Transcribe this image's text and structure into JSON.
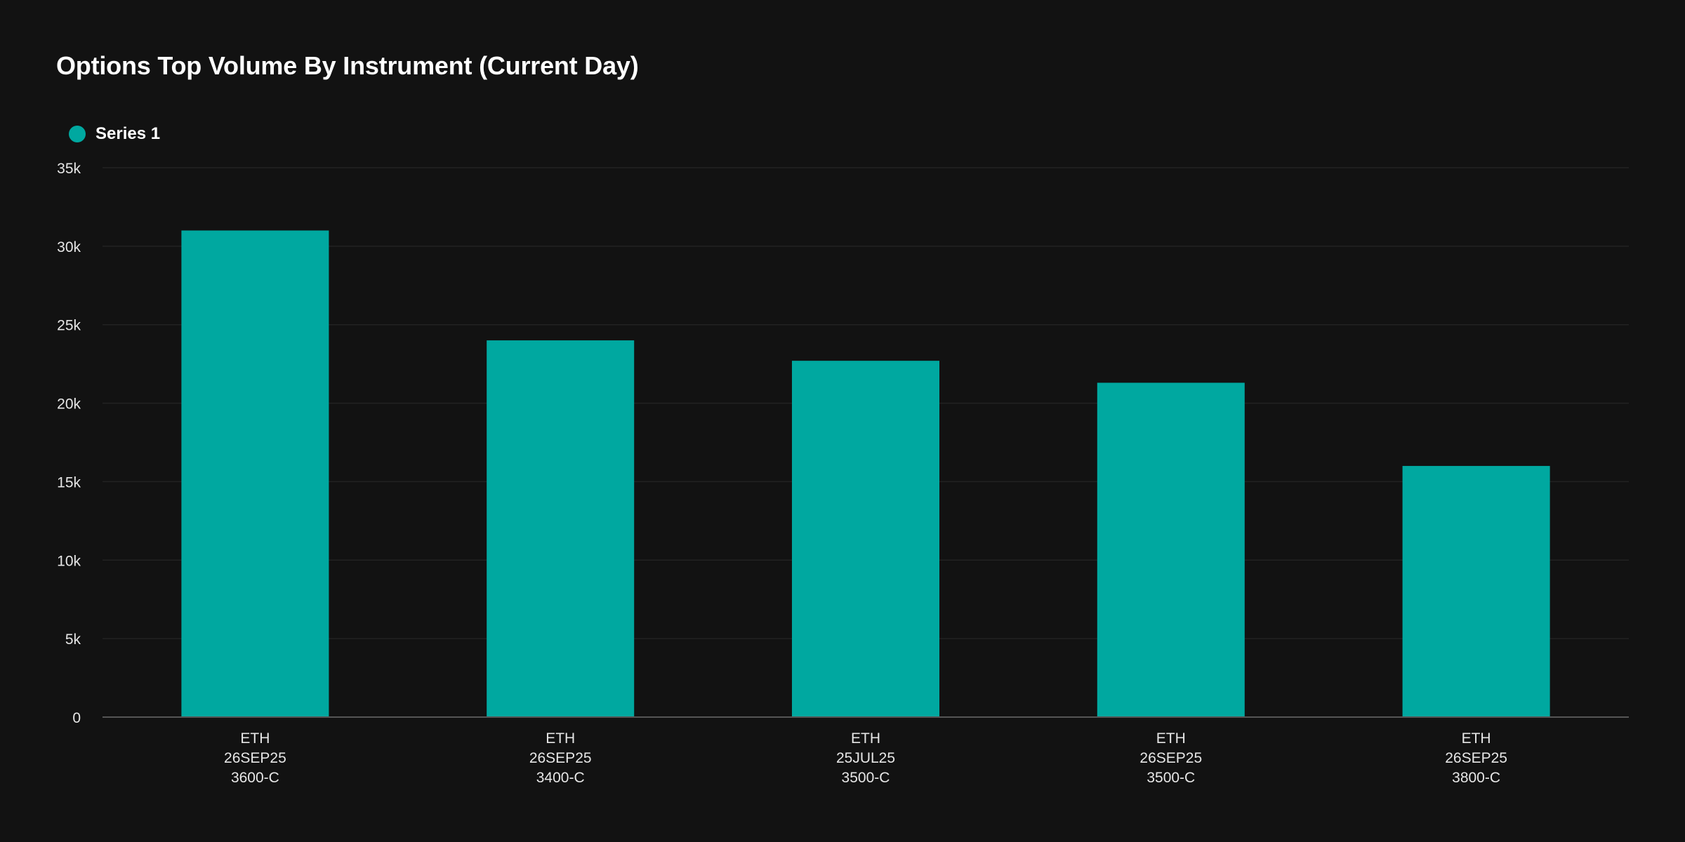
{
  "colors": {
    "background": "#121212",
    "bar": "#00a8a0",
    "gridline": "#222222",
    "axis": "#555555",
    "text": "#ffffff",
    "tick_text": "#e6e6e6"
  },
  "chart_data": {
    "type": "bar",
    "title": "Options Top Volume By Instrument (Current Day)",
    "xlabel": "",
    "ylabel": "",
    "ylim": [
      0,
      35000
    ],
    "grid": true,
    "legend_position": "top-left",
    "y_ticks": [
      0,
      5000,
      10000,
      15000,
      20000,
      25000,
      30000,
      35000
    ],
    "y_tick_labels": [
      "0",
      "5k",
      "10k",
      "15k",
      "20k",
      "25k",
      "30k",
      "35k"
    ],
    "categories": [
      [
        "ETH",
        "26SEP25",
        "3600-C"
      ],
      [
        "ETH",
        "26SEP25",
        "3400-C"
      ],
      [
        "ETH",
        "25JUL25",
        "3500-C"
      ],
      [
        "ETH",
        "26SEP25",
        "3500-C"
      ],
      [
        "ETH",
        "26SEP25",
        "3800-C"
      ]
    ],
    "series": [
      {
        "name": "Series 1",
        "color": "#00a8a0",
        "values": [
          31000,
          24000,
          22700,
          21300,
          16000
        ]
      }
    ]
  }
}
